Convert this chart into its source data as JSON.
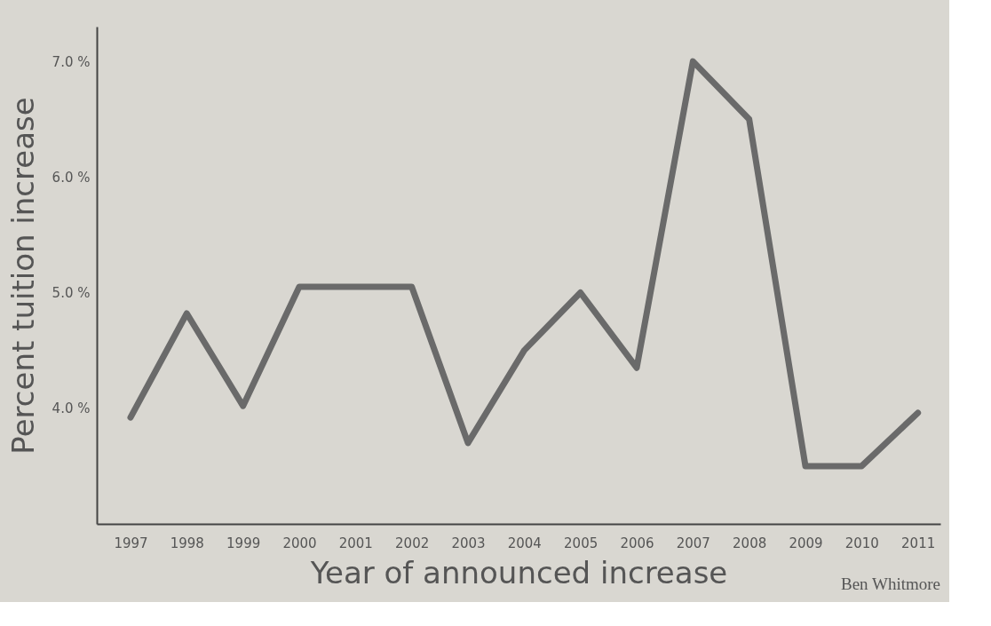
{
  "chart_data": {
    "type": "line",
    "xlabel": "Year of announced increase",
    "ylabel": "Percent tuition increase",
    "categories": [
      "1997",
      "1998",
      "1999",
      "2000",
      "2001",
      "2002",
      "2003",
      "2004",
      "2005",
      "2006",
      "2007",
      "2008",
      "2009",
      "2010",
      "2011"
    ],
    "series": [
      {
        "color": "#6a6a6a",
        "values": [
          3.92,
          4.82,
          4.02,
          5.05,
          5.05,
          5.05,
          3.7,
          4.5,
          5.0,
          4.35,
          7.0,
          6.5,
          3.5,
          3.5,
          3.96
        ]
      }
    ],
    "ylim": [
      3.0,
      7.3
    ],
    "yticks": [
      {
        "value": 4,
        "label": "4.0 %"
      },
      {
        "value": 5,
        "label": "5.0 %"
      },
      {
        "value": 6,
        "label": "6.0 %"
      },
      {
        "value": 7,
        "label": "7.0 %"
      }
    ],
    "grid": false,
    "marker": "none",
    "line_style": "solid",
    "annotations": [
      "Ben Whitmore"
    ]
  }
}
